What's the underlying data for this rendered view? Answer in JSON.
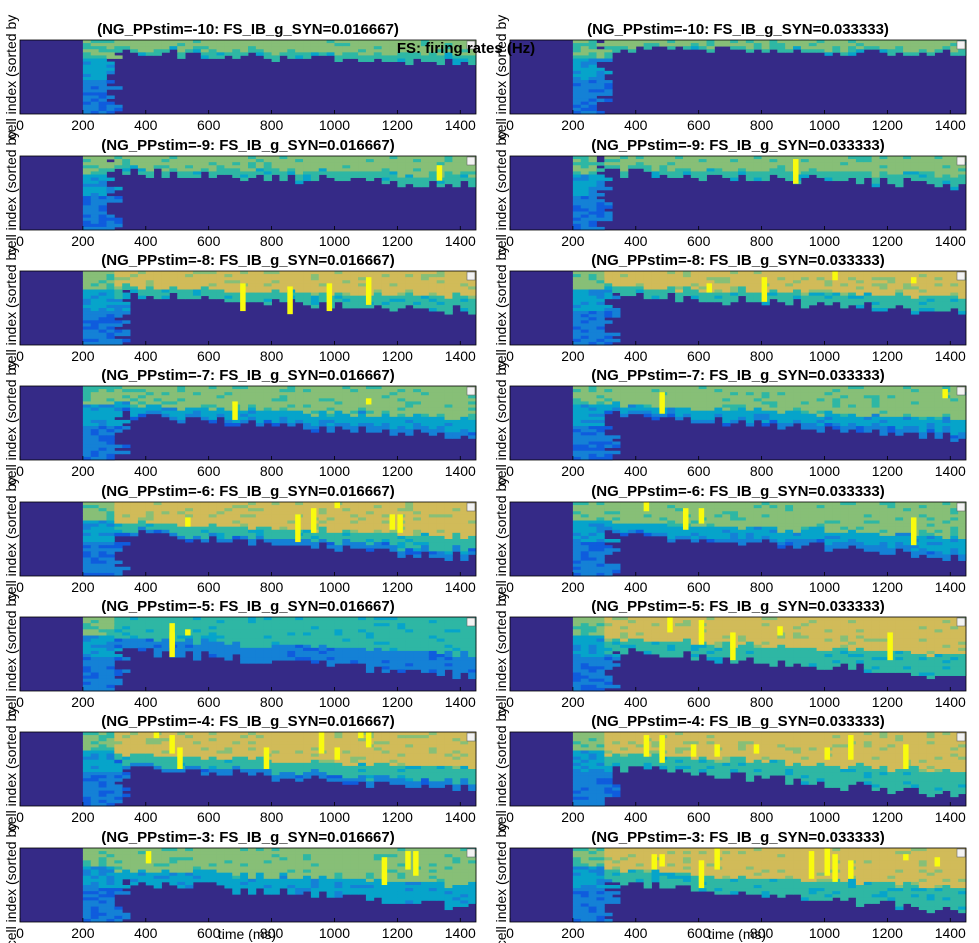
{
  "figure": {
    "suptitle": "FS: firing rates (Hz)"
  },
  "chart_data": {
    "type": "heatmap",
    "xlabel": "time (ms)",
    "ylabel": "cell index (sorted by",
    "xlim": [
      0,
      1450
    ],
    "xticks": [
      "0",
      "200",
      "400",
      "600",
      "800",
      "1000",
      "1200",
      "1400"
    ],
    "colormap": [
      "#352a87",
      "#0f5cdd",
      "#1481d6",
      "#06a4ca",
      "#2eb7a4",
      "#87bf77",
      "#d1bb59",
      "#fedc23",
      "#f9fb0e"
    ],
    "columns": [
      {
        "g_syn": "0.016667",
        "panels": [
          {
            "title": "(NG_PPstim=-10: FS_IB_g_SYN=0.016667)",
            "front": 0.3,
            "edge_level": 4,
            "top_level": 5,
            "yellow_count": 0
          },
          {
            "title": "(NG_PPstim=-9: FS_IB_g_SYN=0.016667)",
            "front": 0.4,
            "edge_level": 4,
            "top_level": 5,
            "yellow_count": 1
          },
          {
            "title": "(NG_PPstim=-8: FS_IB_g_SYN=0.016667)",
            "front": 0.55,
            "edge_level": 4,
            "top_level": 6,
            "yellow_count": 4
          },
          {
            "title": "(NG_PPstim=-7: FS_IB_g_SYN=0.016667)",
            "front": 0.7,
            "edge_level": 2,
            "top_level": 5,
            "yellow_count": 2
          },
          {
            "title": "(NG_PPstim=-6: FS_IB_g_SYN=0.016667)",
            "front": 0.75,
            "edge_level": 2,
            "top_level": 6,
            "yellow_count": 6
          },
          {
            "title": "(NG_PPstim=-5: FS_IB_g_SYN=0.016667)",
            "front": 0.8,
            "edge_level": 2,
            "top_level": 4,
            "yellow_count": 3
          },
          {
            "title": "(NG_PPstim=-4: FS_IB_g_SYN=0.016667)",
            "front": 0.8,
            "edge_level": 2,
            "top_level": 6,
            "yellow_count": 8
          },
          {
            "title": "(NG_PPstim=-3: FS_IB_g_SYN=0.016667)",
            "front": 0.8,
            "edge_level": 3,
            "top_level": 5,
            "yellow_count": 4
          }
        ]
      },
      {
        "g_syn": "0.033333",
        "panels": [
          {
            "title": "(NG_PPstim=-10: FS_IB_g_SYN=0.033333)",
            "front": 0.2,
            "edge_level": 4,
            "top_level": 5,
            "yellow_count": 0
          },
          {
            "title": "(NG_PPstim=-9: FS_IB_g_SYN=0.033333)",
            "front": 0.4,
            "edge_level": 4,
            "top_level": 5,
            "yellow_count": 1
          },
          {
            "title": "(NG_PPstim=-8: FS_IB_g_SYN=0.033333)",
            "front": 0.55,
            "edge_level": 4,
            "top_level": 6,
            "yellow_count": 4
          },
          {
            "title": "(NG_PPstim=-7: FS_IB_g_SYN=0.033333)",
            "front": 0.7,
            "edge_level": 2,
            "top_level": 5,
            "yellow_count": 2
          },
          {
            "title": "(NG_PPstim=-6: FS_IB_g_SYN=0.033333)",
            "front": 0.75,
            "edge_level": 2,
            "top_level": 5,
            "yellow_count": 4
          },
          {
            "title": "(NG_PPstim=-5: FS_IB_g_SYN=0.033333)",
            "front": 0.8,
            "edge_level": 4,
            "top_level": 6,
            "yellow_count": 5
          },
          {
            "title": "(NG_PPstim=-4: FS_IB_g_SYN=0.033333)",
            "front": 0.85,
            "edge_level": 4,
            "top_level": 6,
            "yellow_count": 8
          },
          {
            "title": "(NG_PPstim=-3: FS_IB_g_SYN=0.033333)",
            "front": 0.85,
            "edge_level": 4,
            "top_level": 6,
            "yellow_count": 10
          }
        ]
      }
    ]
  }
}
